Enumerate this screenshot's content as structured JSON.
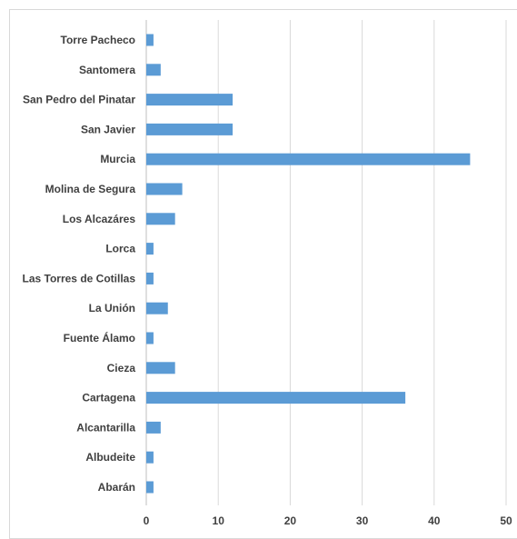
{
  "chart_data": {
    "type": "bar",
    "orientation": "horizontal",
    "title": "",
    "xlabel": "",
    "ylabel": "",
    "categories": [
      "Torre Pacheco",
      "Santomera",
      "San Pedro del Pinatar",
      "San Javier",
      "Murcia",
      "Molina de Segura",
      "Los Alcazáres",
      "Lorca",
      "Las Torres de Cotillas",
      "La Unión",
      "Fuente Álamo",
      "Cieza",
      "Cartagena",
      "Alcantarilla",
      "Albudeite",
      "Abarán"
    ],
    "values": [
      1,
      2,
      12,
      12,
      45,
      5,
      4,
      1,
      1,
      3,
      1,
      4,
      36,
      2,
      1,
      1
    ],
    "xlim": [
      0,
      50
    ],
    "xticks": [
      0,
      10,
      20,
      30,
      40,
      50
    ],
    "bar_color": "#5b9bd5",
    "grid": true,
    "legend": "none"
  }
}
